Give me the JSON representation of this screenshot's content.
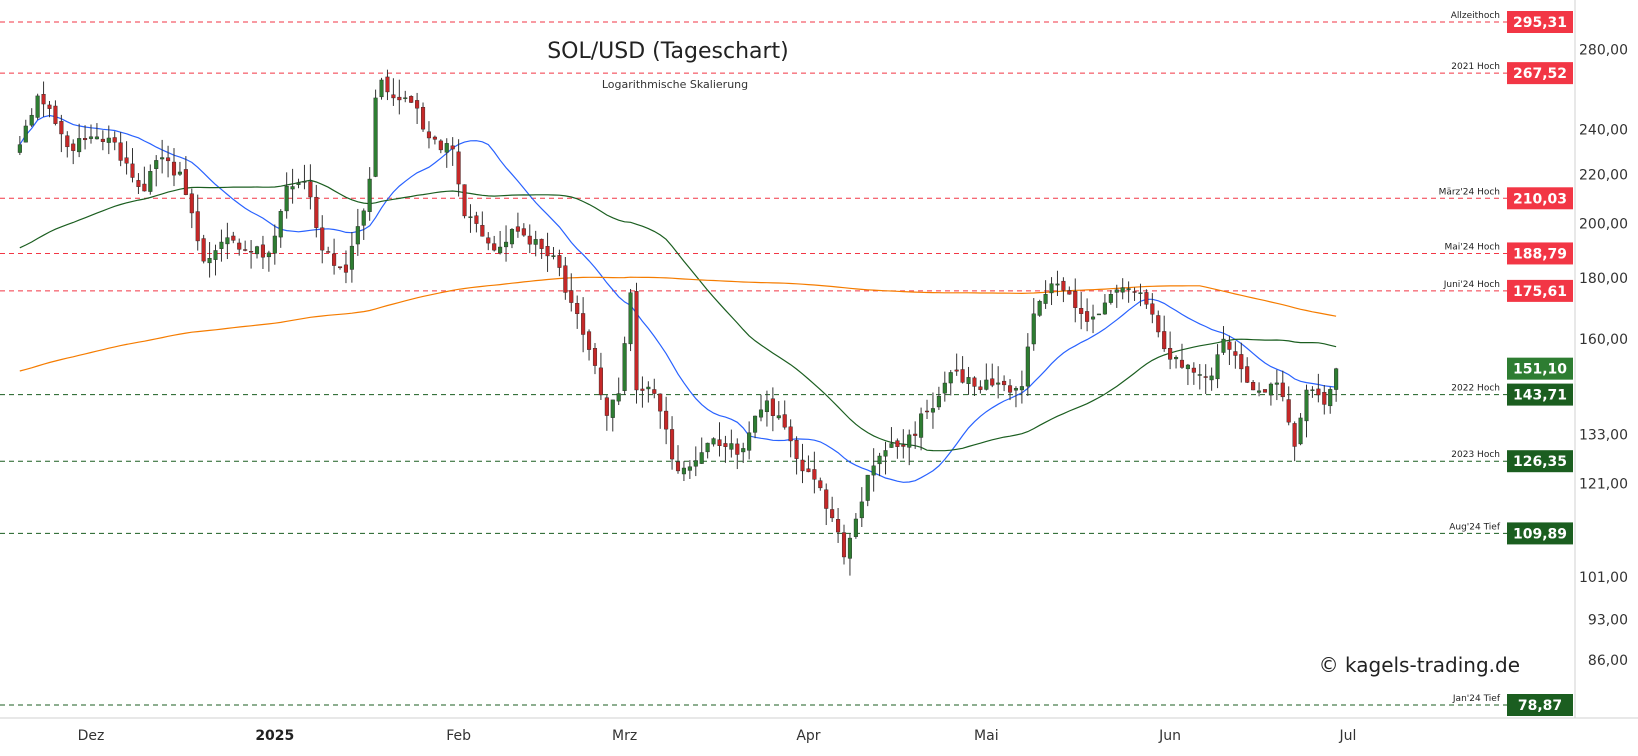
{
  "chart_data": {
    "type": "candlestick",
    "title": "SOL/USD (Tageschart)",
    "subtitle": "Logarithmische Skalierung",
    "scale": "log",
    "ylim": [
      74,
      300
    ],
    "y_ticks": [
      {
        "value": 280,
        "label": "280,00"
      },
      {
        "value": 240,
        "label": "240,00"
      },
      {
        "value": 220,
        "label": "220,00"
      },
      {
        "value": 200,
        "label": "200,00"
      },
      {
        "value": 180,
        "label": "180,00"
      },
      {
        "value": 160,
        "label": "160,00"
      },
      {
        "value": 133,
        "label": "133,00"
      },
      {
        "value": 121,
        "label": "121,00"
      },
      {
        "value": 101,
        "label": "101,00"
      },
      {
        "value": 93,
        "label": "93,00"
      },
      {
        "value": 86,
        "label": "86,00"
      }
    ],
    "x_ticks": [
      {
        "label": "Dez",
        "date": "2024-12-01",
        "bold": false
      },
      {
        "label": "2025",
        "date": "2025-01-01",
        "bold": true
      },
      {
        "label": "Feb",
        "date": "2025-02-01",
        "bold": false
      },
      {
        "label": "Mrz",
        "date": "2025-03-01",
        "bold": false
      },
      {
        "label": "Apr",
        "date": "2025-04-01",
        "bold": false
      },
      {
        "label": "Mai",
        "date": "2025-05-01",
        "bold": false
      },
      {
        "label": "Jun",
        "date": "2025-06-01",
        "bold": false
      },
      {
        "label": "Jul",
        "date": "2025-07-01",
        "bold": false
      }
    ],
    "levels": [
      {
        "value": 295.31,
        "label": "295,31",
        "caption": "Allzeithoch",
        "color": "#f23645"
      },
      {
        "value": 267.52,
        "label": "267,52",
        "caption": "2021 Hoch",
        "color": "#f23645"
      },
      {
        "value": 210.03,
        "label": "210,03",
        "caption": "März'24 Hoch",
        "color": "#f23645"
      },
      {
        "value": 188.79,
        "label": "188,79",
        "caption": "Mai'24 Hoch",
        "color": "#f23645"
      },
      {
        "value": 175.61,
        "label": "175,61",
        "caption": "Juni'24 Hoch",
        "color": "#f23645"
      },
      {
        "value": 143.71,
        "label": "143,71",
        "caption": "2022 Hoch",
        "color": "#1b5e20"
      },
      {
        "value": 126.35,
        "label": "126,35",
        "caption": "2023 Hoch",
        "color": "#1b5e20"
      },
      {
        "value": 109.89,
        "label": "109,89",
        "caption": "Aug'24 Tief",
        "color": "#1b5e20"
      },
      {
        "value": 78.87,
        "label": "78,87",
        "caption": "Jan'24 Tief",
        "color": "#1b5e20"
      }
    ],
    "last_price": {
      "value": 151.1,
      "label": "151,10",
      "color": "#2e7d32"
    },
    "anchors": [
      {
        "date": "2024-11-19",
        "close": 233
      },
      {
        "date": "2024-11-22",
        "close": 256
      },
      {
        "date": "2024-11-27",
        "close": 232
      },
      {
        "date": "2024-12-04",
        "close": 236
      },
      {
        "date": "2024-12-10",
        "close": 213
      },
      {
        "date": "2024-12-12",
        "close": 226
      },
      {
        "date": "2024-12-16",
        "close": 221
      },
      {
        "date": "2024-12-20",
        "close": 186
      },
      {
        "date": "2024-12-23",
        "close": 193
      },
      {
        "date": "2024-12-27",
        "close": 190
      },
      {
        "date": "2024-12-31",
        "close": 189
      },
      {
        "date": "2025-01-03",
        "close": 215
      },
      {
        "date": "2025-01-06",
        "close": 217
      },
      {
        "date": "2025-01-09",
        "close": 190
      },
      {
        "date": "2025-01-13",
        "close": 182
      },
      {
        "date": "2025-01-16",
        "close": 205
      },
      {
        "date": "2025-01-17",
        "close": 218
      },
      {
        "date": "2025-01-18",
        "close": 255
      },
      {
        "date": "2025-01-19",
        "close": 264
      },
      {
        "date": "2025-01-21",
        "close": 255
      },
      {
        "date": "2025-01-25",
        "close": 250
      },
      {
        "date": "2025-01-27",
        "close": 236
      },
      {
        "date": "2025-01-31",
        "close": 231
      },
      {
        "date": "2025-02-02",
        "close": 203
      },
      {
        "date": "2025-02-04",
        "close": 200
      },
      {
        "date": "2025-02-07",
        "close": 190
      },
      {
        "date": "2025-02-11",
        "close": 197
      },
      {
        "date": "2025-02-14",
        "close": 194
      },
      {
        "date": "2025-02-17",
        "close": 188
      },
      {
        "date": "2025-02-21",
        "close": 168
      },
      {
        "date": "2025-02-24",
        "close": 152
      },
      {
        "date": "2025-02-26",
        "close": 138
      },
      {
        "date": "2025-02-28",
        "close": 144
      },
      {
        "date": "2025-03-02",
        "close": 175
      },
      {
        "date": "2025-03-03",
        "close": 145
      },
      {
        "date": "2025-03-06",
        "close": 144
      },
      {
        "date": "2025-03-10",
        "close": 124
      },
      {
        "date": "2025-03-12",
        "close": 125
      },
      {
        "date": "2025-03-16",
        "close": 132
      },
      {
        "date": "2025-03-20",
        "close": 128
      },
      {
        "date": "2025-03-25",
        "close": 142
      },
      {
        "date": "2025-03-27",
        "close": 138
      },
      {
        "date": "2025-03-31",
        "close": 124
      },
      {
        "date": "2025-04-03",
        "close": 120
      },
      {
        "date": "2025-04-07",
        "close": 105
      },
      {
        "date": "2025-04-09",
        "close": 113
      },
      {
        "date": "2025-04-11",
        "close": 123
      },
      {
        "date": "2025-04-14",
        "close": 129
      },
      {
        "date": "2025-04-17",
        "close": 130
      },
      {
        "date": "2025-04-21",
        "close": 139
      },
      {
        "date": "2025-04-25",
        "close": 150
      },
      {
        "date": "2025-04-29",
        "close": 146
      },
      {
        "date": "2025-05-03",
        "close": 147
      },
      {
        "date": "2025-05-07",
        "close": 146
      },
      {
        "date": "2025-05-09",
        "close": 168
      },
      {
        "date": "2025-05-13",
        "close": 178
      },
      {
        "date": "2025-05-16",
        "close": 170
      },
      {
        "date": "2025-05-19",
        "close": 167
      },
      {
        "date": "2025-05-23",
        "close": 176
      },
      {
        "date": "2025-05-27",
        "close": 175
      },
      {
        "date": "2025-05-31",
        "close": 157
      },
      {
        "date": "2025-06-05",
        "close": 150
      },
      {
        "date": "2025-06-08",
        "close": 149
      },
      {
        "date": "2025-06-10",
        "close": 160
      },
      {
        "date": "2025-06-12",
        "close": 155
      },
      {
        "date": "2025-06-15",
        "close": 145
      },
      {
        "date": "2025-06-19",
        "close": 147
      },
      {
        "date": "2025-06-22",
        "close": 130
      },
      {
        "date": "2025-06-24",
        "close": 145
      },
      {
        "date": "2025-06-27",
        "close": 141
      },
      {
        "date": "2025-06-29",
        "close": 151.1
      }
    ],
    "moving_averages": [
      {
        "period": 20,
        "color": "#2962ff"
      },
      {
        "period": 50,
        "color": "#1b5e20"
      },
      {
        "period": 200,
        "color": "#f57c00"
      }
    ],
    "colors": {
      "up": "#2e7d32",
      "down": "#c62828",
      "wick": "#333333",
      "red_level": "#f23645",
      "green_level": "#1b5e20"
    }
  },
  "watermark": "© kagels-trading.de"
}
